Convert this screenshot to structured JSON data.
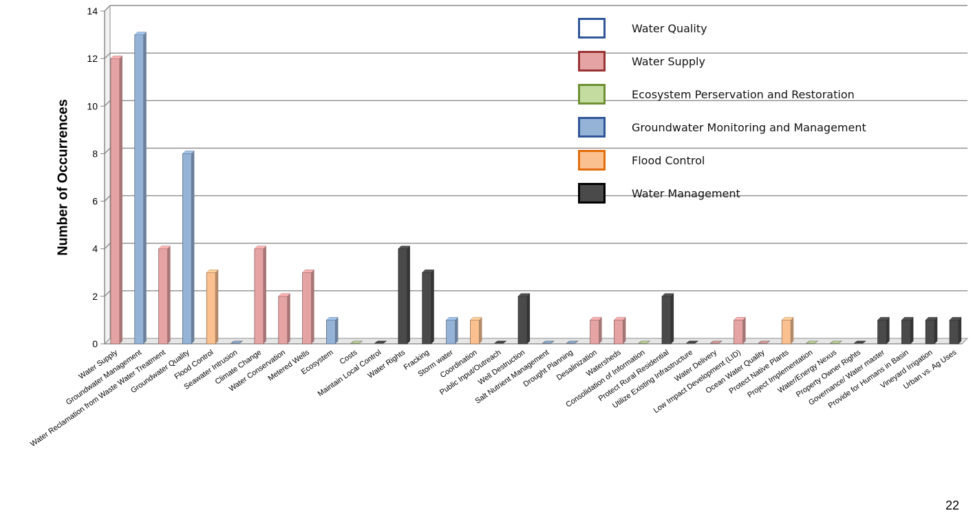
{
  "chart_data": {
    "type": "bar",
    "ylabel": "Number of Occurrences",
    "ylim": [
      0,
      14
    ],
    "yticks": [
      0,
      2,
      4,
      6,
      8,
      10,
      12,
      14
    ],
    "grid": true,
    "legend_position": "top-right",
    "categories": [
      "Water Supply",
      "Groundwater Management",
      "Water Reclamation from Waste Water Treatment",
      "Groundwater Quality",
      "Flood Control",
      "Seawater Intrusion",
      "Climate Change",
      "Water Conservation",
      "Metered Wells",
      "Ecosystem",
      "Costs",
      "Maintain Local Control",
      "Water Rights",
      "Fracking",
      "Storm water",
      "Coordination",
      "Public Input/Outreach",
      "Well Destruction",
      "Salt Nutrient Management",
      "Drought Planning",
      "Desalinization",
      "Watersheds",
      "Consolidation of Information",
      "Protect Rural Residential",
      "Utilize Existing Infrastructure",
      "Water Delivery",
      "Low Impact Development (LID)",
      "Ocean Water Quality",
      "Protect Native Plants",
      "Project Implementation",
      "Water/Energy Nexus",
      "Property Owner Rights",
      "Governance/  Water master",
      "Provide for Humans in Basin",
      "Vineyard Irrigation",
      "Urban vs. Ag Uses"
    ],
    "values": [
      12,
      13,
      4,
      8,
      3,
      0,
      4,
      2,
      3,
      1,
      0,
      0,
      4,
      3,
      1,
      1,
      0,
      2,
      0,
      0,
      1,
      1,
      0,
      2,
      0,
      0,
      1,
      0,
      1,
      0,
      0,
      0,
      1,
      1,
      1,
      1
    ],
    "bar_series": [
      "Water Supply",
      "Groundwater Monitoring and Management",
      "Water Supply",
      "Groundwater Monitoring and Management",
      "Flood Control",
      "Groundwater Monitoring and Management",
      "Water Supply",
      "Water Supply",
      "Water Supply",
      "Groundwater Monitoring and Management",
      "Ecosystem Perservation and Restoration",
      "Water Management",
      "Water Management",
      "Water Management",
      "Groundwater Monitoring and Management",
      "Flood Control",
      "Water Management",
      "Water Management",
      "Groundwater Monitoring and Management",
      "Groundwater Monitoring and Management",
      "Water Supply",
      "Water Supply",
      "Ecosystem Perservation and Restoration",
      "Water Management",
      "Water Management",
      "Water Supply",
      "Water Supply",
      "Water Supply",
      "Flood Control",
      "Ecosystem Perservation and Restoration",
      "Ecosystem Perservation and Restoration",
      "Water Management",
      "Water Management",
      "Water Management",
      "Water Management",
      "Water Management"
    ],
    "series": [
      {
        "name": "Water Quality",
        "fill": "#ffffff",
        "border": "#2f5597"
      },
      {
        "name": "Water Supply",
        "fill": "#e6a3a4",
        "border": "#993333"
      },
      {
        "name": "Ecosystem Perservation and Restoration",
        "fill": "#c4dca0",
        "border": "#6e8f32"
      },
      {
        "name": "Groundwater Monitoring and Management",
        "fill": "#95b3d7",
        "border": "#2f5597"
      },
      {
        "name": "Flood Control",
        "fill": "#fac090",
        "border": "#e36c0a"
      },
      {
        "name": "Water Management",
        "fill": "#4a4a4a",
        "border": "#000000"
      }
    ]
  },
  "page_number": "22"
}
